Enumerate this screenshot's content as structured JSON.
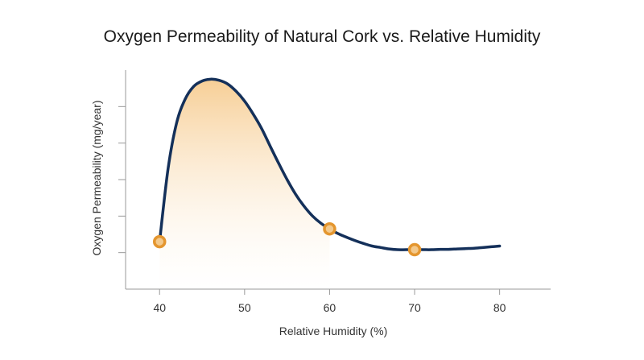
{
  "chart_data": {
    "type": "line",
    "title": "Oxygen Permeability of Natural Cork vs. Relative Humidity",
    "xlabel": "Relative Humidity (%)",
    "ylabel": "Oxygen Permeability (mg/year)",
    "xlim": [
      36,
      86
    ],
    "ylim": [
      0,
      6
    ],
    "x_ticks": [
      40,
      50,
      60,
      70,
      80
    ],
    "x_tick_labels": [
      "40",
      "50",
      "60",
      "70",
      "80"
    ],
    "y_ticks": [
      1,
      2,
      3,
      4,
      5
    ],
    "y_tick_labels_shown": false,
    "grid": false,
    "series": [
      {
        "x": [
          40,
          41,
          42,
          43,
          44,
          45,
          46,
          47,
          48,
          49,
          50,
          51,
          52,
          53,
          54,
          55,
          56,
          57,
          58,
          59,
          60,
          61,
          62,
          63,
          64,
          65,
          66,
          67,
          68,
          69,
          70,
          71,
          72,
          73,
          74,
          75,
          76,
          77,
          78,
          79,
          80
        ],
        "values": [
          1.3,
          3.3,
          4.55,
          5.2,
          5.55,
          5.7,
          5.75,
          5.72,
          5.62,
          5.42,
          5.15,
          4.8,
          4.4,
          3.92,
          3.45,
          3.0,
          2.6,
          2.27,
          2.0,
          1.8,
          1.65,
          1.52,
          1.42,
          1.33,
          1.25,
          1.18,
          1.14,
          1.1,
          1.08,
          1.08,
          1.08,
          1.08,
          1.08,
          1.09,
          1.09,
          1.1,
          1.11,
          1.12,
          1.14,
          1.16,
          1.18
        ],
        "color": "#14305a"
      }
    ],
    "markers": {
      "x": [
        40,
        60,
        70
      ],
      "values": [
        1.3,
        1.65,
        1.08
      ],
      "fill": "#f3c98c",
      "stroke": "#e4962f"
    },
    "shaded_area": {
      "x_range": [
        40,
        60
      ],
      "color_top": "#f6c98a",
      "color_bottom": "#ffffff"
    },
    "axis_color": "#999999"
  }
}
